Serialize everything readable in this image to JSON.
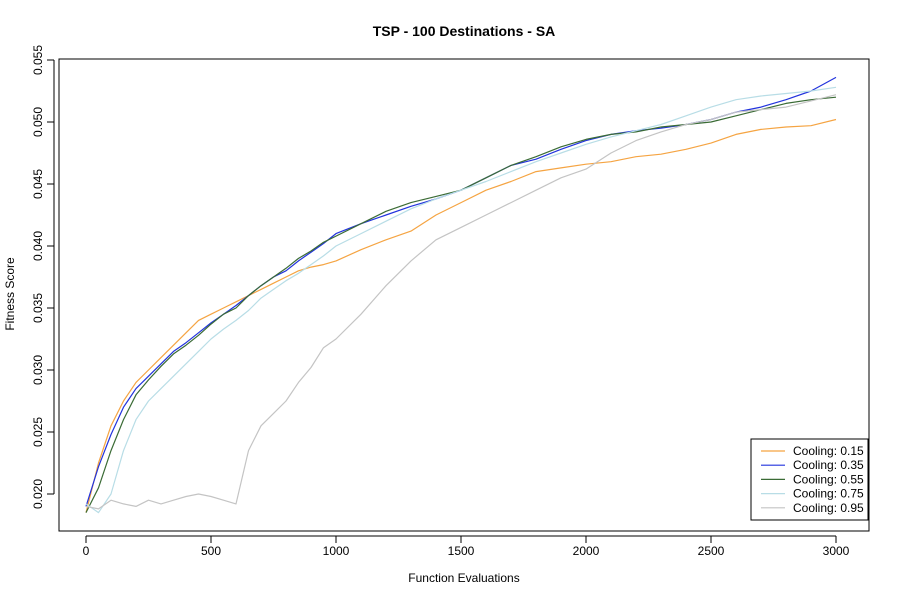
{
  "chart_data": {
    "type": "line",
    "title": "TSP - 100 Destinations - SA",
    "xlabel": "Function Evaluations",
    "ylabel": "Fitness Score",
    "xlim": [
      0,
      3000
    ],
    "ylim": [
      0.018,
      0.055
    ],
    "x_ticks": [
      0,
      500,
      1000,
      1500,
      2000,
      2500,
      3000
    ],
    "x_tick_labels": [
      "0",
      "500",
      "1000",
      "1500",
      "2000",
      "2500",
      "3000"
    ],
    "y_ticks": [
      0.02,
      0.025,
      0.03,
      0.035,
      0.04,
      0.045,
      0.05,
      0.055
    ],
    "y_tick_labels": [
      "0.020",
      "0.025",
      "0.030",
      "0.035",
      "0.040",
      "0.045",
      "0.050",
      "0.055"
    ],
    "grid": false,
    "legend_position": "bottom-right",
    "series": [
      {
        "name": "Cooling: 0.15",
        "color": "#f5a442",
        "x": [
          0,
          50,
          100,
          150,
          200,
          250,
          300,
          350,
          400,
          450,
          500,
          550,
          600,
          650,
          700,
          750,
          800,
          850,
          900,
          950,
          1000,
          1100,
          1200,
          1300,
          1400,
          1500,
          1600,
          1700,
          1800,
          1900,
          2000,
          2100,
          2200,
          2300,
          2400,
          2500,
          2600,
          2700,
          2800,
          2900,
          3000
        ],
        "y": [
          0.0185,
          0.0225,
          0.0255,
          0.0275,
          0.029,
          0.03,
          0.031,
          0.032,
          0.033,
          0.034,
          0.0345,
          0.035,
          0.0355,
          0.036,
          0.0365,
          0.037,
          0.0375,
          0.038,
          0.0383,
          0.0385,
          0.0388,
          0.0397,
          0.0405,
          0.0412,
          0.0425,
          0.0435,
          0.0445,
          0.0452,
          0.046,
          0.0463,
          0.0466,
          0.0468,
          0.0472,
          0.0474,
          0.0478,
          0.0483,
          0.049,
          0.0494,
          0.0496,
          0.0497,
          0.0502
        ]
      },
      {
        "name": "Cooling: 0.35",
        "color": "#2233dd",
        "x": [
          0,
          50,
          100,
          150,
          200,
          250,
          300,
          350,
          400,
          450,
          500,
          550,
          600,
          650,
          700,
          750,
          800,
          850,
          900,
          950,
          1000,
          1100,
          1200,
          1300,
          1400,
          1500,
          1600,
          1700,
          1800,
          1900,
          2000,
          2100,
          2200,
          2300,
          2400,
          2500,
          2600,
          2700,
          2800,
          2900,
          3000
        ],
        "y": [
          0.019,
          0.0222,
          0.0248,
          0.027,
          0.0285,
          0.0295,
          0.0305,
          0.0315,
          0.0322,
          0.033,
          0.0338,
          0.0345,
          0.0352,
          0.036,
          0.0368,
          0.0375,
          0.038,
          0.0388,
          0.0395,
          0.0402,
          0.041,
          0.0418,
          0.0425,
          0.0432,
          0.0438,
          0.0445,
          0.0455,
          0.0465,
          0.047,
          0.0478,
          0.0485,
          0.049,
          0.0493,
          0.0495,
          0.0498,
          0.0502,
          0.0508,
          0.0512,
          0.0518,
          0.0525,
          0.0536
        ]
      },
      {
        "name": "Cooling: 0.55",
        "color": "#3a6b35",
        "x": [
          0,
          50,
          100,
          150,
          200,
          250,
          300,
          350,
          400,
          450,
          500,
          550,
          600,
          650,
          700,
          750,
          800,
          850,
          900,
          950,
          1000,
          1100,
          1200,
          1300,
          1400,
          1500,
          1600,
          1700,
          1800,
          1900,
          2000,
          2100,
          2200,
          2300,
          2400,
          2500,
          2600,
          2700,
          2800,
          2900,
          3000
        ],
        "y": [
          0.0185,
          0.0205,
          0.0235,
          0.026,
          0.028,
          0.0292,
          0.0303,
          0.0313,
          0.032,
          0.0328,
          0.0337,
          0.0345,
          0.035,
          0.036,
          0.0368,
          0.0375,
          0.0382,
          0.039,
          0.0396,
          0.0403,
          0.0408,
          0.0418,
          0.0428,
          0.0435,
          0.044,
          0.0445,
          0.0455,
          0.0465,
          0.0472,
          0.048,
          0.0486,
          0.049,
          0.0492,
          0.0496,
          0.0498,
          0.05,
          0.0505,
          0.051,
          0.0515,
          0.0518,
          0.052
        ]
      },
      {
        "name": "Cooling: 0.75",
        "color": "#b8dde6",
        "x": [
          0,
          50,
          100,
          150,
          200,
          250,
          300,
          350,
          400,
          450,
          500,
          550,
          600,
          650,
          700,
          750,
          800,
          850,
          900,
          950,
          1000,
          1100,
          1200,
          1300,
          1400,
          1500,
          1600,
          1700,
          1800,
          1900,
          2000,
          2100,
          2200,
          2300,
          2400,
          2500,
          2600,
          2700,
          2800,
          2900,
          3000
        ],
        "y": [
          0.0192,
          0.0185,
          0.02,
          0.0235,
          0.026,
          0.0275,
          0.0285,
          0.0295,
          0.0305,
          0.0315,
          0.0325,
          0.0333,
          0.034,
          0.0348,
          0.0358,
          0.0365,
          0.0372,
          0.0378,
          0.0385,
          0.0392,
          0.04,
          0.041,
          0.042,
          0.043,
          0.0438,
          0.0445,
          0.0452,
          0.046,
          0.0468,
          0.0475,
          0.0482,
          0.0488,
          0.0493,
          0.0498,
          0.0505,
          0.0512,
          0.0518,
          0.0521,
          0.0523,
          0.0525,
          0.0528
        ]
      },
      {
        "name": "Cooling: 0.95",
        "color": "#c4c4c4",
        "x": [
          0,
          50,
          100,
          150,
          200,
          250,
          300,
          350,
          400,
          450,
          500,
          550,
          600,
          650,
          700,
          750,
          800,
          850,
          900,
          950,
          1000,
          1100,
          1200,
          1300,
          1400,
          1500,
          1600,
          1700,
          1800,
          1900,
          2000,
          2100,
          2200,
          2300,
          2400,
          2500,
          2600,
          2700,
          2800,
          2900,
          3000
        ],
        "y": [
          0.019,
          0.0188,
          0.0195,
          0.0192,
          0.019,
          0.0195,
          0.0192,
          0.0195,
          0.0198,
          0.02,
          0.0198,
          0.0195,
          0.0192,
          0.0235,
          0.0255,
          0.0265,
          0.0275,
          0.029,
          0.0302,
          0.0318,
          0.0325,
          0.0345,
          0.0368,
          0.0388,
          0.0405,
          0.0415,
          0.0425,
          0.0435,
          0.0445,
          0.0455,
          0.0462,
          0.0475,
          0.0485,
          0.0492,
          0.0498,
          0.0502,
          0.0508,
          0.051,
          0.0512,
          0.0517,
          0.0522
        ]
      }
    ]
  }
}
